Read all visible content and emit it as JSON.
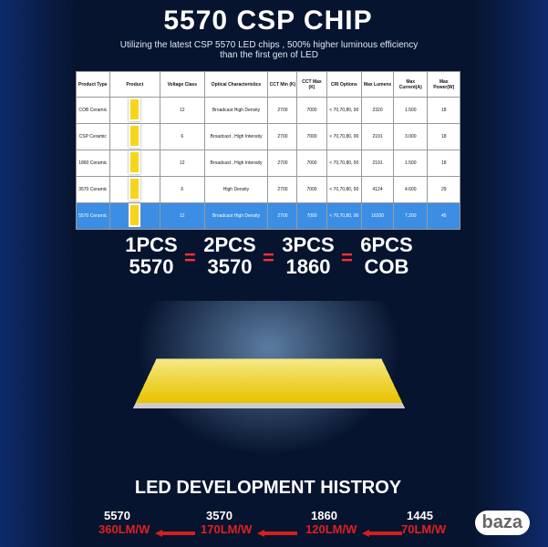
{
  "header": {
    "title": "5570 CSP CHIP",
    "subtitle": "Utilizing the latest CSP 5570 LED chips , 500% higher luminous efficiency than the first gen of LED"
  },
  "table": {
    "columns": [
      "Product Type",
      "Product",
      "Voltage Class",
      "Optical Characteristics",
      "CCT Min (K)",
      "CCT Max (K)",
      "CRI Options",
      "Max Lumens",
      "Max Current(A)",
      "Max Power(W)"
    ],
    "rows": [
      [
        "COB Ceramic",
        "",
        "12",
        "Broadcast High Density",
        "2700",
        "7000",
        "< 70,70,80, 90",
        "2320",
        "1.500",
        "18"
      ],
      [
        "CSP Ceramic",
        "",
        "6",
        "Broadcast , High Intensity",
        "2700",
        "7000",
        "< 70,70,80, 90",
        "2191",
        "3.000",
        "18"
      ],
      [
        "1860 Ceramic",
        "",
        "12",
        "Broadcast , High Intensity",
        "2700",
        "7000",
        "< 70,70,80, 90",
        "2191",
        "1.500",
        "18"
      ],
      [
        "3570 Ceramic",
        "",
        "6",
        "High Density",
        "2700",
        "7000",
        "< 70,70,80, 90",
        "4124",
        "4.600",
        "29"
      ],
      [
        "5570 Ceramic",
        "",
        "12",
        "Broadcast High Density",
        "2700",
        "7000",
        "< 70,70,80, 90",
        "16200",
        "7.200",
        "45"
      ]
    ]
  },
  "equivalence": [
    {
      "count": "1PCS",
      "chip": "5570"
    },
    {
      "count": "2PCS",
      "chip": "3570"
    },
    {
      "count": "3PCS",
      "chip": "1860"
    },
    {
      "count": "6PCS",
      "chip": "COB"
    }
  ],
  "equals": "=",
  "history": {
    "title": "LED DEVELOPMENT HISTROY",
    "steps": [
      {
        "chip": "5570",
        "efficiency": "360LM/W"
      },
      {
        "chip": "3570",
        "efficiency": "170LM/W"
      },
      {
        "chip": "1860",
        "efficiency": "120LM/W"
      },
      {
        "chip": "1445",
        "efficiency": "70LM/W"
      }
    ]
  },
  "watermark": "baza"
}
